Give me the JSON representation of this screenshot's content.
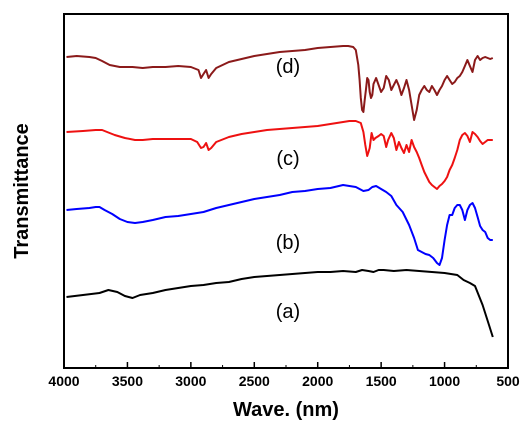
{
  "chart_data": {
    "type": "line",
    "title": "",
    "xlabel": "Wave. (nm)",
    "ylabel": "Transmittance",
    "xlim": [
      4000,
      500
    ],
    "x_reversed": true,
    "x_ticks": [
      4000,
      3500,
      3000,
      2500,
      2000,
      1500,
      1000,
      500
    ],
    "x_tick_labels": [
      "4000",
      "3500",
      "3000",
      "2500",
      "2000",
      "1500",
      "1000",
      "500"
    ],
    "y_ticks_shown": false,
    "grid": false,
    "legend": "none",
    "series": [
      {
        "label": "(a)",
        "color": "#000000",
        "points": [
          [
            3980,
            297
          ],
          [
            3850,
            295
          ],
          [
            3720,
            293
          ],
          [
            3650,
            290
          ],
          [
            3580,
            292
          ],
          [
            3520,
            296
          ],
          [
            3460,
            298
          ],
          [
            3400,
            295
          ],
          [
            3300,
            293
          ],
          [
            3200,
            290
          ],
          [
            3100,
            288
          ],
          [
            3000,
            286
          ],
          [
            2900,
            285
          ],
          [
            2800,
            283
          ],
          [
            2700,
            282
          ],
          [
            2600,
            279
          ],
          [
            2500,
            277
          ],
          [
            2400,
            276
          ],
          [
            2300,
            275
          ],
          [
            2200,
            274
          ],
          [
            2100,
            273
          ],
          [
            2000,
            272
          ],
          [
            1900,
            272
          ],
          [
            1800,
            271
          ],
          [
            1700,
            272
          ],
          [
            1650,
            270
          ],
          [
            1600,
            271
          ],
          [
            1560,
            272
          ],
          [
            1520,
            270
          ],
          [
            1480,
            270
          ],
          [
            1400,
            271
          ],
          [
            1300,
            270
          ],
          [
            1200,
            271
          ],
          [
            1100,
            272
          ],
          [
            1000,
            273
          ],
          [
            900,
            275
          ],
          [
            850,
            280
          ],
          [
            800,
            283
          ],
          [
            760,
            286
          ],
          [
            700,
            305
          ],
          [
            650,
            325
          ],
          [
            620,
            337
          ]
        ]
      },
      {
        "label": "(b)",
        "color": "#0000ff",
        "points": [
          [
            3980,
            210
          ],
          [
            3900,
            209
          ],
          [
            3800,
            208
          ],
          [
            3750,
            207
          ],
          [
            3720,
            207
          ],
          [
            3680,
            210
          ],
          [
            3620,
            214
          ],
          [
            3560,
            219
          ],
          [
            3500,
            222
          ],
          [
            3440,
            223
          ],
          [
            3380,
            222
          ],
          [
            3300,
            220
          ],
          [
            3200,
            217
          ],
          [
            3100,
            216
          ],
          [
            3000,
            214
          ],
          [
            2900,
            212
          ],
          [
            2800,
            208
          ],
          [
            2700,
            205
          ],
          [
            2600,
            202
          ],
          [
            2500,
            199
          ],
          [
            2400,
            197
          ],
          [
            2300,
            195
          ],
          [
            2200,
            192
          ],
          [
            2100,
            191
          ],
          [
            2000,
            189
          ],
          [
            1900,
            188
          ],
          [
            1800,
            185
          ],
          [
            1750,
            186
          ],
          [
            1700,
            187
          ],
          [
            1640,
            191
          ],
          [
            1600,
            190
          ],
          [
            1570,
            187
          ],
          [
            1540,
            186
          ],
          [
            1500,
            189
          ],
          [
            1460,
            192
          ],
          [
            1420,
            196
          ],
          [
            1380,
            205
          ],
          [
            1330,
            212
          ],
          [
            1280,
            225
          ],
          [
            1240,
            238
          ],
          [
            1210,
            250
          ],
          [
            1180,
            252
          ],
          [
            1150,
            254
          ],
          [
            1120,
            255
          ],
          [
            1090,
            258
          ],
          [
            1060,
            263
          ],
          [
            1040,
            265
          ],
          [
            1020,
            258
          ],
          [
            1000,
            240
          ],
          [
            980,
            225
          ],
          [
            960,
            215
          ],
          [
            940,
            215
          ],
          [
            920,
            208
          ],
          [
            900,
            205
          ],
          [
            880,
            205
          ],
          [
            860,
            210
          ],
          [
            840,
            220
          ],
          [
            820,
            210
          ],
          [
            800,
            205
          ],
          [
            780,
            203
          ],
          [
            760,
            208
          ],
          [
            740,
            217
          ],
          [
            720,
            226
          ],
          [
            700,
            230
          ],
          [
            680,
            232
          ],
          [
            660,
            238
          ],
          [
            640,
            240
          ],
          [
            620,
            240
          ]
        ]
      },
      {
        "label": "(c)",
        "color": "#ee1111",
        "points": [
          [
            3980,
            132
          ],
          [
            3850,
            131
          ],
          [
            3750,
            130
          ],
          [
            3700,
            130
          ],
          [
            3660,
            132
          ],
          [
            3600,
            135
          ],
          [
            3520,
            138
          ],
          [
            3440,
            140
          ],
          [
            3380,
            140
          ],
          [
            3300,
            139
          ],
          [
            3200,
            139
          ],
          [
            3100,
            139
          ],
          [
            3000,
            139
          ],
          [
            2950,
            142
          ],
          [
            2920,
            148
          ],
          [
            2900,
            147
          ],
          [
            2880,
            143
          ],
          [
            2860,
            150
          ],
          [
            2840,
            148
          ],
          [
            2800,
            142
          ],
          [
            2700,
            137
          ],
          [
            2600,
            134
          ],
          [
            2500,
            132
          ],
          [
            2400,
            130
          ],
          [
            2300,
            129
          ],
          [
            2200,
            128
          ],
          [
            2100,
            127
          ],
          [
            2000,
            126
          ],
          [
            1900,
            124
          ],
          [
            1800,
            122
          ],
          [
            1750,
            121
          ],
          [
            1700,
            121
          ],
          [
            1660,
            123
          ],
          [
            1640,
            132
          ],
          [
            1625,
            145
          ],
          [
            1610,
            156
          ],
          [
            1600,
            152
          ],
          [
            1590,
            148
          ],
          [
            1575,
            133
          ],
          [
            1560,
            140
          ],
          [
            1545,
            138
          ],
          [
            1520,
            136
          ],
          [
            1500,
            134
          ],
          [
            1480,
            136
          ],
          [
            1460,
            147
          ],
          [
            1445,
            140
          ],
          [
            1420,
            133
          ],
          [
            1400,
            138
          ],
          [
            1380,
            150
          ],
          [
            1360,
            142
          ],
          [
            1340,
            148
          ],
          [
            1320,
            153
          ],
          [
            1300,
            145
          ],
          [
            1280,
            152
          ],
          [
            1260,
            140
          ],
          [
            1240,
            147
          ],
          [
            1220,
            152
          ],
          [
            1200,
            158
          ],
          [
            1180,
            165
          ],
          [
            1160,
            172
          ],
          [
            1140,
            177
          ],
          [
            1120,
            182
          ],
          [
            1100,
            185
          ],
          [
            1080,
            187
          ],
          [
            1060,
            189
          ],
          [
            1040,
            186
          ],
          [
            1020,
            184
          ],
          [
            1000,
            181
          ],
          [
            980,
            177
          ],
          [
            960,
            170
          ],
          [
            940,
            165
          ],
          [
            920,
            158
          ],
          [
            900,
            150
          ],
          [
            880,
            140
          ],
          [
            860,
            135
          ],
          [
            840,
            133
          ],
          [
            820,
            136
          ],
          [
            800,
            142
          ],
          [
            780,
            132
          ],
          [
            760,
            134
          ],
          [
            740,
            137
          ],
          [
            720,
            141
          ],
          [
            700,
            144
          ],
          [
            680,
            142
          ],
          [
            660,
            140
          ],
          [
            640,
            140
          ],
          [
            620,
            140
          ]
        ]
      },
      {
        "label": "(d)",
        "color": "#8b1a1a",
        "points": [
          [
            3980,
            57
          ],
          [
            3900,
            56
          ],
          [
            3800,
            57
          ],
          [
            3750,
            58
          ],
          [
            3700,
            61
          ],
          [
            3640,
            65
          ],
          [
            3560,
            67
          ],
          [
            3460,
            67
          ],
          [
            3380,
            68
          ],
          [
            3300,
            67
          ],
          [
            3200,
            67
          ],
          [
            3100,
            66
          ],
          [
            3000,
            67
          ],
          [
            2940,
            70
          ],
          [
            2920,
            78
          ],
          [
            2900,
            74
          ],
          [
            2880,
            70
          ],
          [
            2860,
            78
          ],
          [
            2840,
            74
          ],
          [
            2800,
            68
          ],
          [
            2700,
            62
          ],
          [
            2600,
            59
          ],
          [
            2500,
            56
          ],
          [
            2400,
            54
          ],
          [
            2300,
            52
          ],
          [
            2200,
            51
          ],
          [
            2100,
            50
          ],
          [
            2000,
            48
          ],
          [
            1900,
            47
          ],
          [
            1800,
            46
          ],
          [
            1760,
            46
          ],
          [
            1720,
            47
          ],
          [
            1700,
            50
          ],
          [
            1680,
            65
          ],
          [
            1670,
            80
          ],
          [
            1660,
            98
          ],
          [
            1650,
            110
          ],
          [
            1640,
            112
          ],
          [
            1630,
            100
          ],
          [
            1620,
            90
          ],
          [
            1610,
            78
          ],
          [
            1600,
            80
          ],
          [
            1590,
            92
          ],
          [
            1580,
            98
          ],
          [
            1570,
            95
          ],
          [
            1560,
            84
          ],
          [
            1540,
            78
          ],
          [
            1520,
            85
          ],
          [
            1500,
            92
          ],
          [
            1480,
            88
          ],
          [
            1460,
            76
          ],
          [
            1440,
            80
          ],
          [
            1420,
            90
          ],
          [
            1400,
            85
          ],
          [
            1380,
            80
          ],
          [
            1360,
            86
          ],
          [
            1340,
            95
          ],
          [
            1320,
            88
          ],
          [
            1300,
            80
          ],
          [
            1280,
            90
          ],
          [
            1260,
            105
          ],
          [
            1240,
            120
          ],
          [
            1220,
            110
          ],
          [
            1200,
            95
          ],
          [
            1180,
            90
          ],
          [
            1160,
            86
          ],
          [
            1140,
            90
          ],
          [
            1120,
            92
          ],
          [
            1100,
            86
          ],
          [
            1080,
            90
          ],
          [
            1060,
            95
          ],
          [
            1040,
            90
          ],
          [
            1020,
            86
          ],
          [
            1000,
            80
          ],
          [
            980,
            76
          ],
          [
            960,
            80
          ],
          [
            940,
            84
          ],
          [
            920,
            82
          ],
          [
            900,
            78
          ],
          [
            880,
            76
          ],
          [
            860,
            72
          ],
          [
            840,
            66
          ],
          [
            820,
            60
          ],
          [
            800,
            66
          ],
          [
            780,
            72
          ],
          [
            760,
            60
          ],
          [
            740,
            56
          ],
          [
            720,
            60
          ],
          [
            700,
            58
          ],
          [
            680,
            57
          ],
          [
            660,
            58
          ],
          [
            640,
            59
          ],
          [
            620,
            58
          ]
        ]
      }
    ],
    "curve_labels": [
      "(a)",
      "(b)",
      "(c)",
      "(d)"
    ]
  }
}
